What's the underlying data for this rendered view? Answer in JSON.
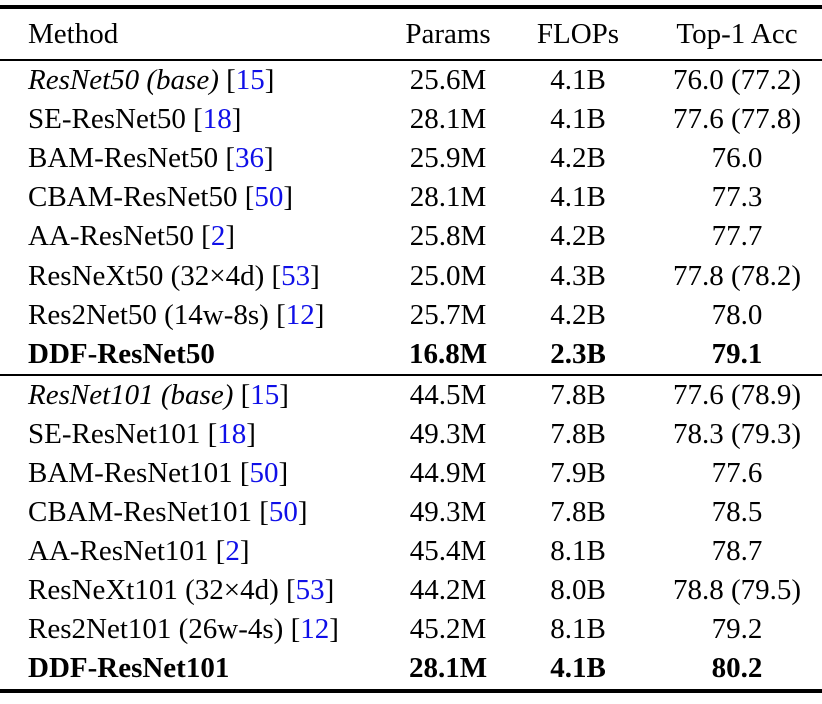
{
  "table": {
    "columns": [
      "Method",
      "Params",
      "FLOPs",
      "Top-1 Acc"
    ],
    "cite_open": "[",
    "cite_close": "]",
    "colors": {
      "text": "#000000",
      "background": "#ffffff",
      "citation": "#0f0fe8",
      "rule": "#000000"
    },
    "groups": [
      {
        "rows": [
          {
            "method": "ResNet50 (base)",
            "cite": "15",
            "style": "italic",
            "params": "25.6M",
            "flops": "4.1B",
            "top1": "76.0 (77.2)"
          },
          {
            "method": "SE-ResNet50",
            "cite": "18",
            "style": "",
            "params": "28.1M",
            "flops": "4.1B",
            "top1": "77.6 (77.8)"
          },
          {
            "method": "BAM-ResNet50",
            "cite": "36",
            "style": "",
            "params": "25.9M",
            "flops": "4.2B",
            "top1": "76.0"
          },
          {
            "method": "CBAM-ResNet50",
            "cite": "50",
            "style": "",
            "params": "28.1M",
            "flops": "4.1B",
            "top1": "77.3"
          },
          {
            "method": "AA-ResNet50",
            "cite": "2",
            "style": "",
            "params": "25.8M",
            "flops": "4.2B",
            "top1": "77.7"
          },
          {
            "method": "ResNeXt50 (32×4d)",
            "cite": "53",
            "style": "",
            "params": "25.0M",
            "flops": "4.3B",
            "top1": "77.8 (78.2)"
          },
          {
            "method": "Res2Net50 (14w-8s)",
            "cite": "12",
            "style": "",
            "params": "25.7M",
            "flops": "4.2B",
            "top1": "78.0"
          },
          {
            "method": "DDF-ResNet50",
            "cite": "",
            "style": "bold",
            "params": "16.8M",
            "flops": "2.3B",
            "top1": "79.1"
          }
        ]
      },
      {
        "rows": [
          {
            "method": "ResNet101 (base)",
            "cite": "15",
            "style": "italic",
            "params": "44.5M",
            "flops": "7.8B",
            "top1": "77.6 (78.9)"
          },
          {
            "method": "SE-ResNet101",
            "cite": "18",
            "style": "",
            "params": "49.3M",
            "flops": "7.8B",
            "top1": "78.3 (79.3)"
          },
          {
            "method": "BAM-ResNet101",
            "cite": "50",
            "style": "",
            "params": "44.9M",
            "flops": "7.9B",
            "top1": "77.6"
          },
          {
            "method": "CBAM-ResNet101",
            "cite": "50",
            "style": "",
            "params": "49.3M",
            "flops": "7.8B",
            "top1": "78.5"
          },
          {
            "method": "AA-ResNet101",
            "cite": "2",
            "style": "",
            "params": "45.4M",
            "flops": "8.1B",
            "top1": "78.7"
          },
          {
            "method": "ResNeXt101 (32×4d)",
            "cite": "53",
            "style": "",
            "params": "44.2M",
            "flops": "8.0B",
            "top1": "78.8 (79.5)"
          },
          {
            "method": "Res2Net101 (26w-4s)",
            "cite": "12",
            "style": "",
            "params": "45.2M",
            "flops": "8.1B",
            "top1": "79.2"
          },
          {
            "method": "DDF-ResNet101",
            "cite": "",
            "style": "bold",
            "params": "28.1M",
            "flops": "4.1B",
            "top1": "80.2"
          }
        ]
      }
    ]
  }
}
